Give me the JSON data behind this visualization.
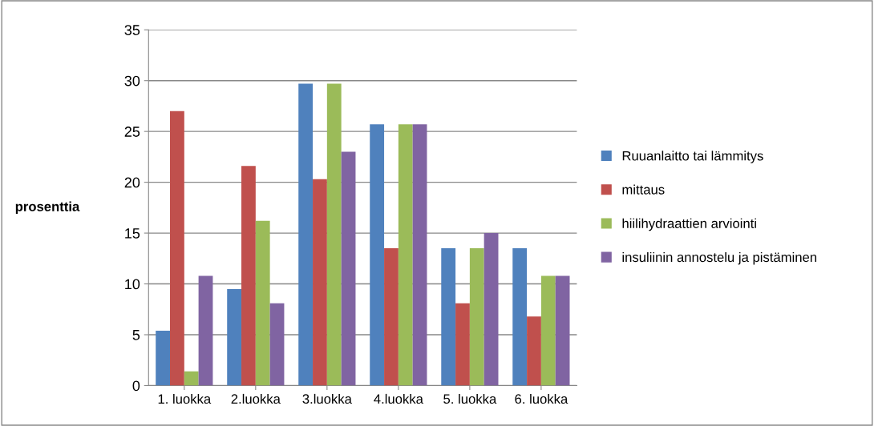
{
  "chart_data": {
    "type": "bar",
    "ylabel": "prosenttia",
    "categories": [
      "1. luokka",
      "2.luokka",
      "3.luokka",
      "4.luokka",
      "5. luokka",
      "6. luokka"
    ],
    "series": [
      {
        "name": "Ruuanlaitto tai lämmitys",
        "color": "#4f81bd",
        "values": [
          5.4,
          9.5,
          29.7,
          25.7,
          13.5,
          13.5
        ]
      },
      {
        "name": "mittaus",
        "color": "#c0504d",
        "values": [
          27.0,
          21.6,
          20.3,
          13.5,
          8.1,
          6.8
        ]
      },
      {
        "name": "hiilihydraattien arviointi",
        "color": "#9bbb59",
        "values": [
          1.4,
          16.2,
          29.7,
          25.7,
          13.5,
          10.8
        ]
      },
      {
        "name": "insuliinin annostelu ja pistäminen",
        "color": "#8064a2",
        "values": [
          10.8,
          8.1,
          23.0,
          25.7,
          15.0,
          10.8
        ]
      }
    ],
    "ylim": [
      0,
      35
    ],
    "yticks": [
      0,
      5,
      10,
      15,
      20,
      25,
      30,
      35
    ],
    "grid": "y",
    "legend": "right"
  }
}
